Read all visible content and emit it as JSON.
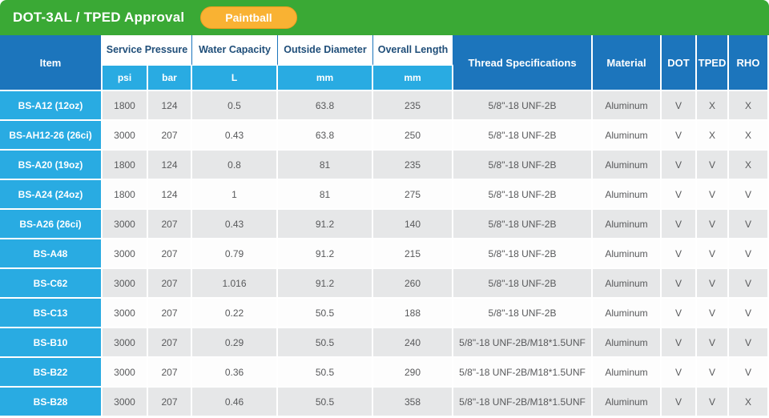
{
  "header": {
    "title": "DOT-3AL / TPED Approval",
    "badge": "Paintball"
  },
  "colors": {
    "green": "#3aa935",
    "blue": "#1c75bc",
    "cyan": "#29abe2",
    "badge_yellow": "#f9b233",
    "row_gray": "#e6e7e8",
    "text_gray": "#58595b"
  },
  "table": {
    "columns": {
      "item": "Item",
      "service_pressure": "Service Pressure",
      "psi": "psi",
      "bar": "bar",
      "water_capacity": "Water Capacity",
      "l": "L",
      "outside_diameter": "Outside Diameter",
      "mm_od": "mm",
      "overall_length": "Overall Length",
      "mm_ol": "mm",
      "thread": "Thread Specifications",
      "material": "Material",
      "dot": "DOT",
      "tped": "TPED",
      "rho": "RHO"
    },
    "rows": [
      {
        "item": "BS-A12 (12oz)",
        "psi": "1800",
        "bar": "124",
        "l": "0.5",
        "od": "63.8",
        "ol": "235",
        "thread": "5/8\"-18 UNF-2B",
        "material": "Aluminum",
        "dot": "V",
        "tped": "X",
        "rho": "X"
      },
      {
        "item": "BS-AH12-26 (26ci)",
        "psi": "3000",
        "bar": "207",
        "l": "0.43",
        "od": "63.8",
        "ol": "250",
        "thread": "5/8\"-18 UNF-2B",
        "material": "Aluminum",
        "dot": "V",
        "tped": "X",
        "rho": "X"
      },
      {
        "item": "BS-A20 (19oz)",
        "psi": "1800",
        "bar": "124",
        "l": "0.8",
        "od": "81",
        "ol": "235",
        "thread": "5/8\"-18 UNF-2B",
        "material": "Aluminum",
        "dot": "V",
        "tped": "V",
        "rho": "X"
      },
      {
        "item": "BS-A24 (24oz)",
        "psi": "1800",
        "bar": "124",
        "l": "1",
        "od": "81",
        "ol": "275",
        "thread": "5/8\"-18 UNF-2B",
        "material": "Aluminum",
        "dot": "V",
        "tped": "V",
        "rho": "V"
      },
      {
        "item": "BS-A26 (26ci)",
        "psi": "3000",
        "bar": "207",
        "l": "0.43",
        "od": "91.2",
        "ol": "140",
        "thread": "5/8\"-18 UNF-2B",
        "material": "Aluminum",
        "dot": "V",
        "tped": "V",
        "rho": "V"
      },
      {
        "item": "BS-A48",
        "psi": "3000",
        "bar": "207",
        "l": "0.79",
        "od": "91.2",
        "ol": "215",
        "thread": "5/8\"-18 UNF-2B",
        "material": "Aluminum",
        "dot": "V",
        "tped": "V",
        "rho": "V"
      },
      {
        "item": "BS-C62",
        "psi": "3000",
        "bar": "207",
        "l": "1.016",
        "od": "91.2",
        "ol": "260",
        "thread": "5/8\"-18 UNF-2B",
        "material": "Aluminum",
        "dot": "V",
        "tped": "V",
        "rho": "V"
      },
      {
        "item": "BS-C13",
        "psi": "3000",
        "bar": "207",
        "l": "0.22",
        "od": "50.5",
        "ol": "188",
        "thread": "5/8\"-18 UNF-2B",
        "material": "Aluminum",
        "dot": "V",
        "tped": "V",
        "rho": "V"
      },
      {
        "item": "BS-B10",
        "psi": "3000",
        "bar": "207",
        "l": "0.29",
        "od": "50.5",
        "ol": "240",
        "thread": "5/8\"-18 UNF-2B/M18*1.5UNF",
        "material": "Aluminum",
        "dot": "V",
        "tped": "V",
        "rho": "V"
      },
      {
        "item": "BS-B22",
        "psi": "3000",
        "bar": "207",
        "l": "0.36",
        "od": "50.5",
        "ol": "290",
        "thread": "5/8\"-18 UNF-2B/M18*1.5UNF",
        "material": "Aluminum",
        "dot": "V",
        "tped": "V",
        "rho": "V"
      },
      {
        "item": "BS-B28",
        "psi": "3000",
        "bar": "207",
        "l": "0.46",
        "od": "50.5",
        "ol": "358",
        "thread": "5/8\"-18 UNF-2B/M18*1.5UNF",
        "material": "Aluminum",
        "dot": "V",
        "tped": "V",
        "rho": "X"
      }
    ]
  }
}
